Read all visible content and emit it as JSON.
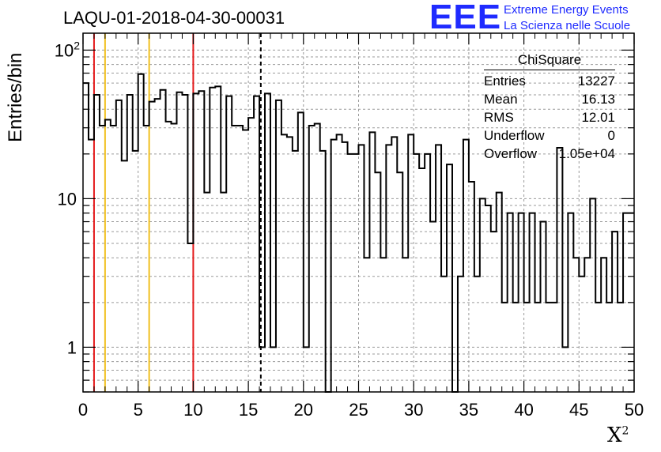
{
  "title": "LAQU-01-2018-04-30-00031",
  "logo": {
    "text": "EEE",
    "line1": "Extreme Energy Events",
    "line2": "La Scienza nelle Scuole",
    "color": "#1f2bff"
  },
  "stats": {
    "title": "ChiSquare",
    "rows": [
      {
        "label": "Entries",
        "value": "13227"
      },
      {
        "label": "Mean",
        "value": "16.13"
      },
      {
        "label": "RMS",
        "value": "12.01"
      },
      {
        "label": "Underflow",
        "value": "0"
      },
      {
        "label": "Overflow",
        "value": "1.05e+04"
      }
    ]
  },
  "chart_data": {
    "type": "bar",
    "histogram_style": "step",
    "ylabel": "Entries/bin",
    "xlabel": "X",
    "xlabel_superscript": "2",
    "xlim": [
      0,
      50
    ],
    "ylim": [
      0.5,
      130
    ],
    "yscale": "log",
    "grid": true,
    "bin_width": 0.5,
    "x_ticks": [
      "0",
      "5",
      "10",
      "15",
      "20",
      "25",
      "30",
      "35",
      "40",
      "45",
      "50"
    ],
    "y_ticks": [
      "1",
      "10",
      "10²"
    ],
    "values": [
      60,
      25,
      50,
      31,
      34,
      31,
      46,
      18,
      50,
      21,
      69,
      31,
      45,
      47,
      54,
      33,
      32,
      52,
      50,
      5,
      51,
      53,
      11,
      56,
      57,
      11,
      49,
      31,
      31,
      29,
      35,
      49,
      1,
      51,
      1,
      46,
      27,
      26,
      21,
      38,
      1,
      31,
      32,
      21,
      0,
      25,
      27,
      24,
      20,
      20,
      23,
      4,
      28,
      15,
      4,
      23,
      26,
      15,
      4,
      27,
      20,
      16,
      20,
      7,
      23,
      3,
      17,
      0,
      3,
      25,
      13,
      3,
      10,
      9,
      6,
      11,
      2,
      8,
      2,
      8,
      2,
      8,
      2,
      7,
      2,
      2,
      22,
      1,
      8,
      4,
      3,
      4,
      10,
      2,
      4,
      2,
      6,
      2,
      8,
      8
    ],
    "vertical_lines": [
      {
        "x": 1,
        "color": "#e41a1c",
        "style": "solid"
      },
      {
        "x": 2,
        "color": "#f0c020",
        "style": "solid"
      },
      {
        "x": 6,
        "color": "#f0c020",
        "style": "solid"
      },
      {
        "x": 10,
        "color": "#e41a1c",
        "style": "solid"
      },
      {
        "x": 16.13,
        "color": "#000000",
        "style": "dashed"
      }
    ]
  }
}
